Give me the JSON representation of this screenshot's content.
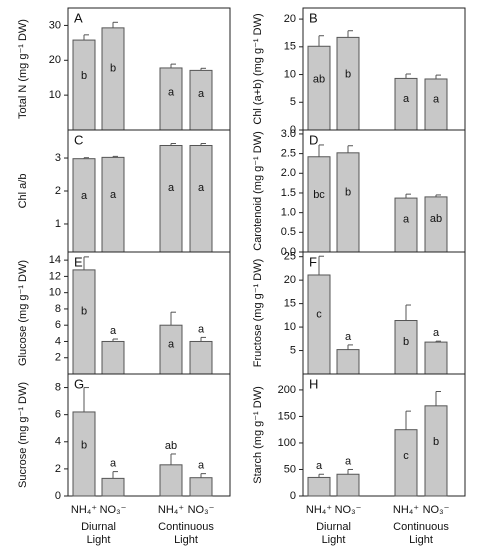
{
  "chart_data": [
    {
      "type": "bar",
      "panel": "A",
      "ylabel": "Total N  (mg g⁻¹ DW)",
      "ylim": [
        0,
        35
      ],
      "yticks": [
        10,
        20,
        30
      ],
      "values": [
        25.8,
        29.3,
        17.8,
        17.1
      ],
      "errors": [
        1.5,
        1.6,
        1.1,
        0.6
      ],
      "annotations": [
        "b",
        "b",
        "a",
        "a"
      ]
    },
    {
      "type": "bar",
      "panel": "B",
      "ylabel": "Chl (a+b)  (mg g⁻¹ DW)",
      "ylim": [
        0,
        22
      ],
      "yticks": [
        0,
        5,
        10,
        15,
        20
      ],
      "values": [
        15.1,
        16.7,
        9.3,
        9.2
      ],
      "errors": [
        1.9,
        1.2,
        0.8,
        0.7
      ],
      "annotations": [
        "ab",
        "b",
        "a",
        "a"
      ]
    },
    {
      "type": "bar",
      "panel": "C",
      "ylabel": "Chl a/b",
      "ylim": [
        0.15,
        3.85
      ],
      "yticks": [
        1,
        2,
        3
      ],
      "values": [
        2.98,
        3.02,
        3.38,
        3.38
      ],
      "errors": [
        0.03,
        0.03,
        0.06,
        0.06
      ],
      "annotations": [
        "a",
        "a",
        "a",
        "a"
      ]
    },
    {
      "type": "bar",
      "panel": "D",
      "ylabel": "Carotenoid (mg g⁻¹ DW)",
      "ylim": [
        0,
        3.1
      ],
      "yticks": [
        {
          "value": 0,
          "label": "0.0"
        },
        0.5,
        {
          "value": 1,
          "label": "1.0"
        },
        1.5,
        {
          "value": 2,
          "label": "2.0"
        },
        2.5,
        {
          "value": 3,
          "label": "3.0"
        }
      ],
      "values": [
        2.42,
        2.52,
        1.37,
        1.4
      ],
      "errors": [
        0.3,
        0.18,
        0.1,
        0.05
      ],
      "annotations": [
        "bc",
        "b",
        "a",
        "ab"
      ]
    },
    {
      "type": "bar",
      "panel": "E",
      "ylabel": "Glucose (mg g⁻¹ DW)",
      "ylim": [
        0,
        15
      ],
      "yticks": [
        2,
        4,
        6,
        8,
        10,
        12,
        14
      ],
      "values": [
        12.8,
        4.0,
        6.0,
        4.0
      ],
      "errors": [
        1.6,
        0.3,
        1.6,
        0.5
      ],
      "annotations": [
        "b",
        "a",
        "a",
        "a"
      ]
    },
    {
      "type": "bar",
      "panel": "F",
      "ylabel": "Fructose (mg g⁻¹ DW)",
      "ylim": [
        0,
        26
      ],
      "yticks": [
        5,
        10,
        15,
        20,
        25
      ],
      "values": [
        21.1,
        5.2,
        11.4,
        6.8
      ],
      "errors": [
        4.0,
        1.0,
        3.3,
        0.2
      ],
      "annotations": [
        "c",
        "a",
        "b",
        "a"
      ]
    },
    {
      "type": "bar",
      "panel": "G",
      "ylabel": "Sucrose (mg g⁻¹ DW)",
      "ylim": [
        0,
        9
      ],
      "yticks": [
        0,
        2,
        4,
        6,
        8
      ],
      "values": [
        6.2,
        1.3,
        2.3,
        1.35
      ],
      "errors": [
        1.8,
        0.5,
        0.8,
        0.3
      ],
      "annotations": [
        "b",
        "a",
        "ab",
        "a"
      ],
      "categories": [
        "NH₄⁺",
        "NO₃⁻",
        "NH₄⁺",
        "NO₃⁻"
      ],
      "groups": [
        [
          "Diurnal",
          "Light"
        ],
        [
          "Continuous",
          "Light"
        ]
      ]
    },
    {
      "type": "bar",
      "panel": "H",
      "ylabel": "Starch (mg g⁻¹ DW)",
      "ylim": [
        0,
        230
      ],
      "yticks": [
        0,
        50,
        100,
        150,
        200
      ],
      "values": [
        35,
        41,
        125,
        170
      ],
      "errors": [
        6,
        9,
        35,
        27
      ],
      "annotations": [
        "a",
        "a",
        "c",
        "b"
      ],
      "categories": [
        "NH₄⁺",
        "NO₃⁻",
        "NH₄⁺",
        "NO₃⁻"
      ],
      "groups": [
        [
          "Diurnal",
          "Light"
        ],
        [
          "Continuous",
          "Light"
        ]
      ]
    }
  ]
}
